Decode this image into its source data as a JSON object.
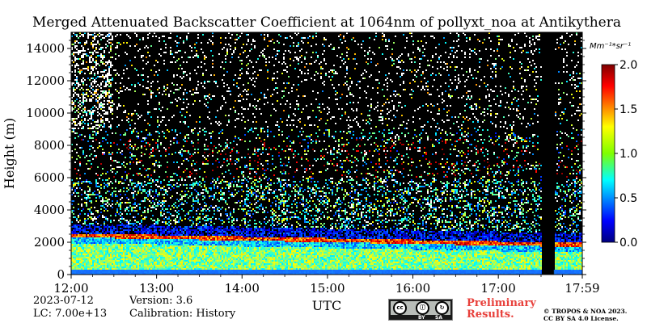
{
  "chart_data": {
    "type": "heatmap",
    "title": "Merged Attenuated Backscatter Coefficient at 1064nm of pollyxt_noa at Antikythera",
    "xlabel": "UTC",
    "ylabel": "Height (m)",
    "x_ticks": [
      "12:00",
      "13:00",
      "14:00",
      "15:00",
      "16:00",
      "17:00",
      "17:59"
    ],
    "x_range_hours": [
      12.0,
      17.983
    ],
    "y_ticks": [
      0,
      2000,
      4000,
      6000,
      8000,
      10000,
      12000,
      14000
    ],
    "ylim": [
      0,
      15000
    ],
    "colorbar": {
      "unit_label": "Mm⁻¹*sr⁻¹",
      "ticks": [
        "0.0",
        "0.5",
        "1.0",
        "1.5",
        "2.0"
      ],
      "range": [
        0.0,
        2.0
      ],
      "colormap": "jet"
    },
    "features": [
      {
        "name": "near-surface layer",
        "height_range_m": [
          0,
          400
        ],
        "value": 0.3
      },
      {
        "name": "boundary layer",
        "height_range_m": [
          400,
          2000
        ],
        "value": 1.0
      },
      {
        "name": "layer top",
        "height_m_at_start": 2500,
        "height_m_at_end": 1900,
        "value": 1.8
      },
      {
        "name": "no data gap",
        "time_range_hours": [
          17.5,
          17.65
        ]
      }
    ]
  },
  "footer": {
    "date": "2023-07-12",
    "lc": "LC: 7.00e+13",
    "version": "Version: 3.6",
    "calibration": "Calibration: History",
    "preliminary_line1": "Preliminary",
    "preliminary_line2": "Results.",
    "copyright_line1": "© TROPOS & NOA 2023.",
    "copyright_line2": "CC BY SA 4.0 License.",
    "license_badge": [
      "BY",
      "SA"
    ]
  },
  "colors": {
    "plot_background": "#000000",
    "preliminary_text": "#e8413c"
  }
}
